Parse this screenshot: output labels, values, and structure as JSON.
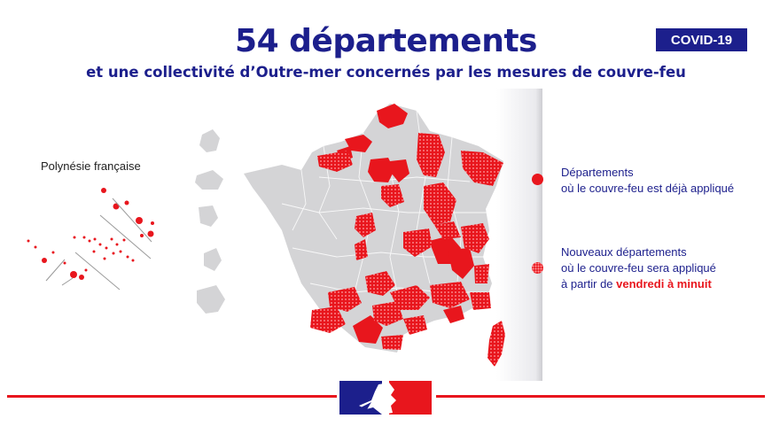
{
  "header": {
    "title": "54 départements",
    "subtitle": "et une collectivité d’Outre-mer concernés par les mesures de couvre-feu",
    "badge": "COVID-19"
  },
  "map": {
    "overseas_label": "Polynésie française"
  },
  "legend": {
    "existing": {
      "line1": "Départements",
      "line2": "où le couvre-feu est déjà appliqué"
    },
    "new": {
      "line1": "Nouveaux départements",
      "line2": "où le couvre-feu sera appliqué",
      "line3_prefix": "à partir de ",
      "line3_emphasis": "vendredi à minuit"
    }
  },
  "colors": {
    "navy": "#1c1f8c",
    "red": "#e8161d",
    "grey_department": "#d4d4d6"
  }
}
